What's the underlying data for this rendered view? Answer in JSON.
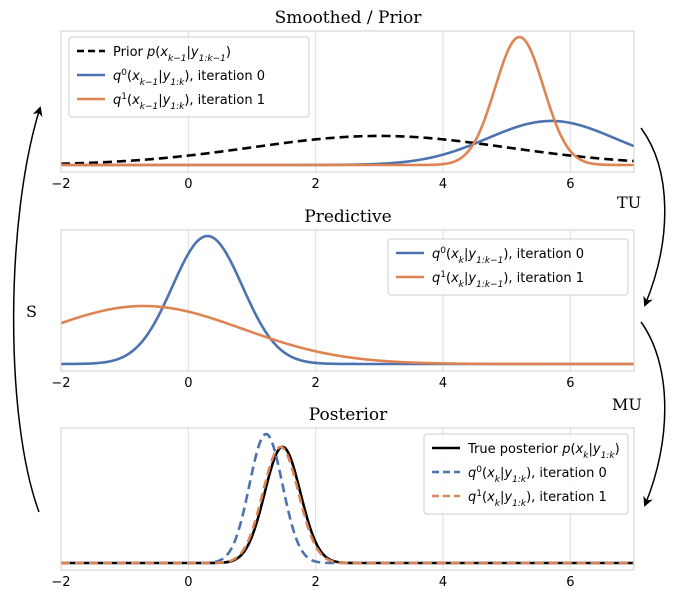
{
  "chart_data": [
    {
      "type": "line",
      "title": "Smoothed / Prior",
      "xlim": [
        -2,
        7
      ],
      "ylim": [
        0,
        1.0
      ],
      "x_ticks": [
        -2,
        0,
        2,
        4,
        6
      ],
      "x_tick_labels": [
        "−2",
        "0",
        "2",
        "4",
        "6"
      ],
      "grid": true,
      "legend_position": "top-left",
      "series": [
        {
          "name": "Prior",
          "legend_math": [
            [
              "i",
              "p"
            ],
            [
              "r",
              "("
            ],
            [
              "i",
              "x"
            ],
            [
              "sub",
              "k−1"
            ],
            [
              "r",
              "|"
            ],
            [
              "i",
              "y"
            ],
            [
              "sub",
              "1:k−1"
            ],
            [
              "r",
              ")"
            ]
          ],
          "color": "#000000",
          "dashed": true,
          "mean": 3.0,
          "sd": 2.0,
          "peak": 0.227
        },
        {
          "name": "",
          "legend_math": [
            [
              "i",
              "q"
            ],
            [
              "sup",
              "0"
            ],
            [
              "r",
              "("
            ],
            [
              "i",
              "x"
            ],
            [
              "sub",
              "k−1"
            ],
            [
              "r",
              "|"
            ],
            [
              "i",
              "y"
            ],
            [
              "sub",
              "1:k"
            ],
            [
              "r",
              "), iteration 0"
            ]
          ],
          "color": "#4c72b0",
          "dashed": false,
          "mean": 5.7,
          "sd": 1.0,
          "peak": 0.344
        },
        {
          "name": "",
          "legend_math": [
            [
              "i",
              "q"
            ],
            [
              "sup",
              "1"
            ],
            [
              "r",
              "("
            ],
            [
              "i",
              "x"
            ],
            [
              "sub",
              "k−1"
            ],
            [
              "r",
              "|"
            ],
            [
              "i",
              "y"
            ],
            [
              "sub",
              "1:k"
            ],
            [
              "r",
              "), iteration 1"
            ]
          ],
          "color": "#dd8452",
          "dashed": false,
          "mean": 5.2,
          "sd": 0.38,
          "peak": 1.0
        }
      ]
    },
    {
      "type": "line",
      "title": "Predictive",
      "xlim": [
        -2,
        7
      ],
      "ylim": [
        0,
        1.0
      ],
      "x_ticks": [
        -2,
        0,
        2,
        4,
        6
      ],
      "x_tick_labels": [
        "−2",
        "0",
        "2",
        "4",
        "6"
      ],
      "grid": true,
      "legend_position": "top-right",
      "series": [
        {
          "name": "",
          "legend_math": [
            [
              "i",
              "q"
            ],
            [
              "sup",
              "0"
            ],
            [
              "r",
              "("
            ],
            [
              "i",
              "x"
            ],
            [
              "sub",
              "k"
            ],
            [
              "r",
              "|"
            ],
            [
              "i",
              "y"
            ],
            [
              "sub",
              "1:k−1"
            ],
            [
              "r",
              "), iteration 0"
            ]
          ],
          "color": "#4c72b0",
          "dashed": false,
          "mean": 0.3,
          "sd": 0.55,
          "peak": 1.0
        },
        {
          "name": "",
          "legend_math": [
            [
              "i",
              "q"
            ],
            [
              "sup",
              "1"
            ],
            [
              "r",
              "("
            ],
            [
              "i",
              "x"
            ],
            [
              "sub",
              "k"
            ],
            [
              "r",
              "|"
            ],
            [
              "i",
              "y"
            ],
            [
              "sub",
              "1:k−1"
            ],
            [
              "r",
              "), iteration 1"
            ]
          ],
          "color": "#dd8452",
          "dashed": false,
          "mean": -0.7,
          "sd": 1.55,
          "peak": 0.453
        }
      ]
    },
    {
      "type": "line",
      "title": "Posterior",
      "xlim": [
        -2,
        7
      ],
      "ylim": [
        0,
        1.0
      ],
      "x_ticks": [
        -2,
        0,
        2,
        4,
        6
      ],
      "x_tick_labels": [
        "−2",
        "0",
        "2",
        "4",
        "6"
      ],
      "grid": true,
      "legend_position": "top-right",
      "series": [
        {
          "name": "True posterior",
          "legend_math": [
            [
              "i",
              "p"
            ],
            [
              "r",
              "("
            ],
            [
              "i",
              "x"
            ],
            [
              "sub",
              "k"
            ],
            [
              "r",
              "|"
            ],
            [
              "i",
              "y"
            ],
            [
              "sub",
              "1:k"
            ],
            [
              "r",
              ")"
            ]
          ],
          "color": "#000000",
          "dashed": false,
          "mean": 1.48,
          "sd": 0.28,
          "peak": 0.9
        },
        {
          "name": "",
          "legend_math": [
            [
              "i",
              "q"
            ],
            [
              "sup",
              "0"
            ],
            [
              "r",
              "("
            ],
            [
              "i",
              "x"
            ],
            [
              "sub",
              "k"
            ],
            [
              "r",
              "|"
            ],
            [
              "i",
              "y"
            ],
            [
              "sub",
              "1:k"
            ],
            [
              "r",
              "), iteration 0"
            ]
          ],
          "color": "#4c72b0",
          "dashed": true,
          "mean": 1.22,
          "sd": 0.26,
          "peak": 1.0
        },
        {
          "name": "",
          "legend_math": [
            [
              "i",
              "q"
            ],
            [
              "sup",
              "1"
            ],
            [
              "r",
              "("
            ],
            [
              "i",
              "x"
            ],
            [
              "sub",
              "k"
            ],
            [
              "r",
              "|"
            ],
            [
              "i",
              "y"
            ],
            [
              "sub",
              "1:k"
            ],
            [
              "r",
              "), iteration 1"
            ]
          ],
          "color": "#dd8452",
          "dashed": true,
          "mean": 1.45,
          "sd": 0.28,
          "peak": 0.9
        }
      ]
    }
  ],
  "flow_labels": {
    "tu": "TU",
    "mu": "MU",
    "s": "S"
  }
}
